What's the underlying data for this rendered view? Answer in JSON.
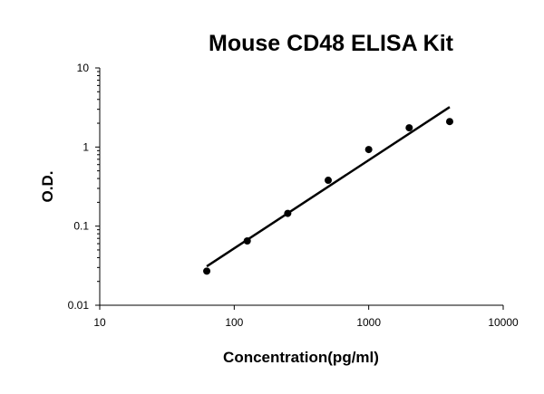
{
  "chart_data": {
    "type": "scatter",
    "title": "Mouse CD48 ELISA Kit",
    "x_label": "Concentration(pg/ml)",
    "y_label": "O.D.",
    "x": [
      62.5,
      125,
      250,
      500,
      1000,
      2000,
      4000
    ],
    "series": [
      {
        "color": "#000000",
        "values": [
          0.027,
          0.065,
          0.145,
          0.38,
          0.93,
          1.75,
          2.1
        ]
      }
    ],
    "trendline": {
      "color": "#000000",
      "x": [
        62.5,
        4000
      ],
      "values": [
        0.031,
        3.2
      ]
    },
    "xlim": [
      10,
      10000
    ],
    "xticks": [
      10,
      100,
      1000,
      10000
    ],
    "ylim": [
      0.01,
      10
    ],
    "yticks": [
      0.01,
      0.1,
      1,
      10
    ],
    "xscale": "log",
    "yscale": "log",
    "grid": false
  }
}
